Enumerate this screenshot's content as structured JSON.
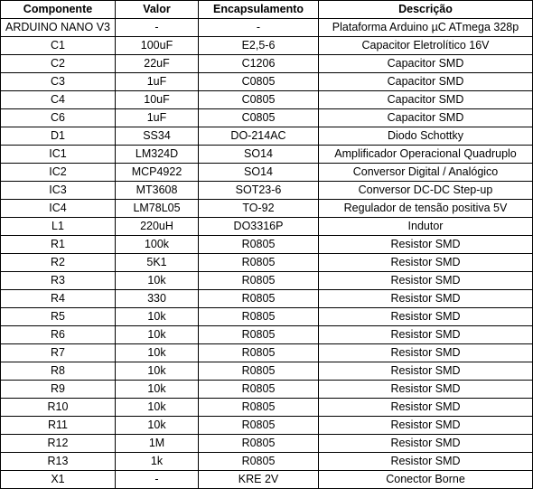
{
  "table": {
    "headers": [
      "Componente",
      "Valor",
      "Encapsulamento",
      "Descrição"
    ],
    "rows": [
      [
        "ARDUINO NANO V3",
        "-",
        "-",
        "Plataforma Arduino µC ATmega 328p"
      ],
      [
        "C1",
        "100uF",
        "E2,5-6",
        "Capacitor Eletrolítico 16V"
      ],
      [
        "C2",
        "22uF",
        "C1206",
        "Capacitor SMD"
      ],
      [
        "C3",
        "1uF",
        "C0805",
        "Capacitor SMD"
      ],
      [
        "C4",
        "10uF",
        "C0805",
        "Capacitor SMD"
      ],
      [
        "C6",
        "1uF",
        "C0805",
        "Capacitor SMD"
      ],
      [
        "D1",
        "SS34",
        "DO-214AC",
        "Diodo Schottky"
      ],
      [
        "IC1",
        "LM324D",
        "SO14",
        "Amplificador Operacional Quadruplo"
      ],
      [
        "IC2",
        "MCP4922",
        "SO14",
        "Conversor Digital / Analógico"
      ],
      [
        "IC3",
        "MT3608",
        "SOT23-6",
        "Conversor DC-DC Step-up"
      ],
      [
        "IC4",
        "LM78L05",
        "TO-92",
        "Regulador de tensão positiva 5V"
      ],
      [
        "L1",
        "220uH",
        "DO3316P",
        "Indutor"
      ],
      [
        "R1",
        "100k",
        "R0805",
        "Resistor SMD"
      ],
      [
        "R2",
        "5K1",
        "R0805",
        "Resistor SMD"
      ],
      [
        "R3",
        "10k",
        "R0805",
        "Resistor SMD"
      ],
      [
        "R4",
        "330",
        "R0805",
        "Resistor SMD"
      ],
      [
        "R5",
        "10k",
        "R0805",
        "Resistor SMD"
      ],
      [
        "R6",
        "10k",
        "R0805",
        "Resistor SMD"
      ],
      [
        "R7",
        "10k",
        "R0805",
        "Resistor SMD"
      ],
      [
        "R8",
        "10k",
        "R0805",
        "Resistor SMD"
      ],
      [
        "R9",
        "10k",
        "R0805",
        "Resistor SMD"
      ],
      [
        "R10",
        "10k",
        "R0805",
        "Resistor SMD"
      ],
      [
        "R11",
        "10k",
        "R0805",
        "Resistor SMD"
      ],
      [
        "R12",
        "1M",
        "R0805",
        "Resistor SMD"
      ],
      [
        "R13",
        "1k",
        "R0805",
        "Resistor SMD"
      ],
      [
        "X1",
        "-",
        "KRE 2V",
        "Conector Borne"
      ]
    ]
  }
}
